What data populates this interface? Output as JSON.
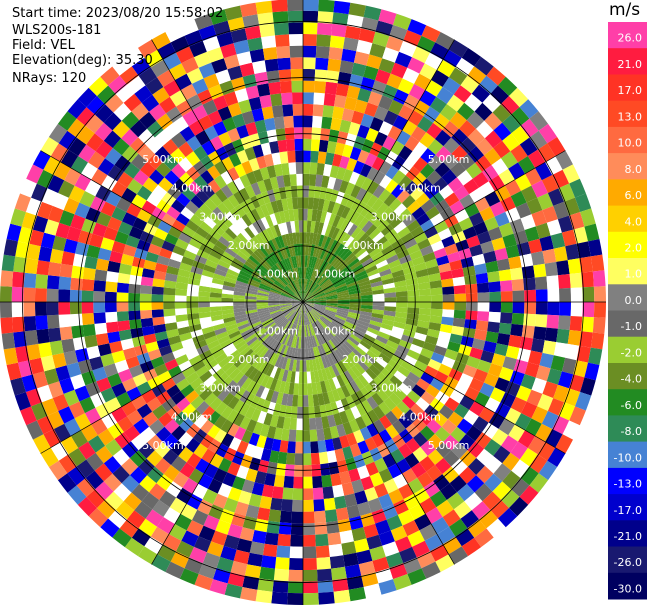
{
  "header": {
    "start_time": "Start time: 2023/08/20 15:58:02",
    "instrument": "WLS200s-181",
    "field": "Field: VEL",
    "elevation": "Elevation(deg): 35.30",
    "nrays": "NRays: 120"
  },
  "chart_data": {
    "type": "heatmap",
    "projection": "polar-ppi",
    "field": "VEL",
    "units": "m/s",
    "n_rays": 120,
    "range_rings": [
      "1.00km",
      "2.00km",
      "3.00km",
      "4.00km",
      "5.00km"
    ],
    "max_range_km": 5.4,
    "colorbar": {
      "ticks": [
        "26.0",
        "21.0",
        "17.0",
        "13.0",
        "10.0",
        "8.0",
        "6.0",
        "4.0",
        "2.0",
        "1.0",
        "0.0",
        "-1.0",
        "-2.0",
        "-4.0",
        "-6.0",
        "-8.0",
        "-10.0",
        "-13.0",
        "-17.0",
        "-21.0",
        "-26.0",
        "-30.0"
      ],
      "colors": [
        "#ff3fa8",
        "#ff1c40",
        "#ff3324",
        "#ff4a24",
        "#ff6a40",
        "#ff8c5a",
        "#ffaa00",
        "#ffd000",
        "#ffff00",
        "#ffff60",
        "#808080",
        "#686868",
        "#9acd32",
        "#6b8e23",
        "#228b22",
        "#2e8b57",
        "#4682d4",
        "#0000ff",
        "#0000cd",
        "#00008b",
        "#191970",
        "#000060"
      ]
    },
    "structure": {
      "inner_zone_km": 2.4,
      "inner_colors": [
        "#9acd32",
        "#6b8e23",
        "#808080",
        "#228b22"
      ]
    }
  }
}
